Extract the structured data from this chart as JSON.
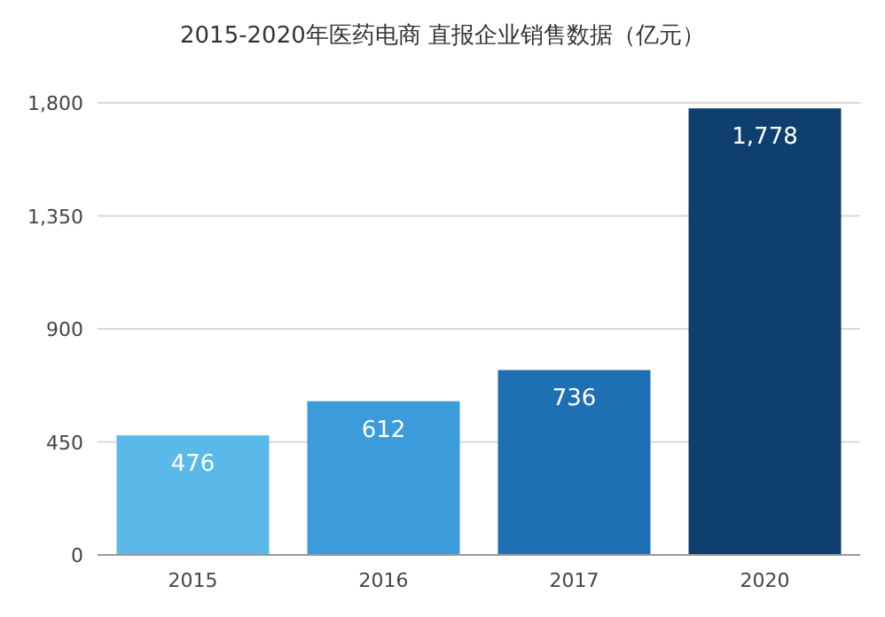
{
  "chart_data": {
    "type": "bar",
    "title": "2015-2020年医药电商 直报企业销售数据（亿元）",
    "categories": [
      "2015",
      "2016",
      "2017",
      "2020"
    ],
    "values": [
      476,
      612,
      736,
      1778
    ],
    "value_labels": [
      "476",
      "612",
      "736",
      "1,778"
    ],
    "colors": [
      "#5bb9e9",
      "#3b9bdb",
      "#1f6fb5",
      "#0e3f6f"
    ],
    "ylim": [
      0,
      1800
    ],
    "yticks": [
      0,
      450,
      900,
      {
        "value": 1350,
        "label": "1,350"
      },
      {
        "value": 1800,
        "label": "1,800"
      }
    ],
    "grid": "y"
  }
}
